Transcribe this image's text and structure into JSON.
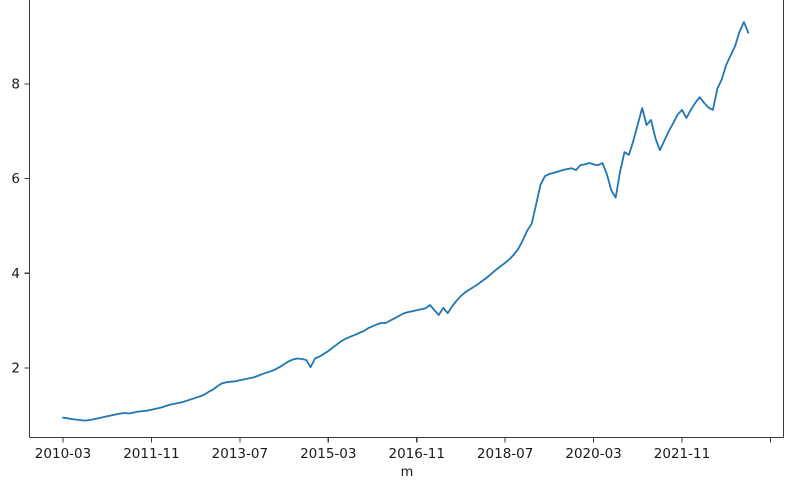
{
  "figure": {
    "background": "#ffffff",
    "note": "matplotlib-style line figure, top spine cropped out of view"
  },
  "chart_data": {
    "type": "line",
    "title": "",
    "xlabel": "m",
    "ylabel": "",
    "legend": "none",
    "grid": false,
    "line_color": "#1f77b4",
    "axis_color": "#3c3c3c",
    "x_tick_labels": [
      "2010-03",
      "2011-11",
      "2013-07",
      "2015-03",
      "2016-11",
      "2018-07",
      "2020-03",
      "2021-11",
      ""
    ],
    "x_tick_month_indices": [
      0,
      20,
      40,
      60,
      80,
      100,
      120,
      140,
      160
    ],
    "y_ticks": [
      2,
      4,
      6,
      8
    ],
    "y_tick_labels": [
      "2",
      "4",
      "6",
      "8"
    ],
    "ylim_visible": [
      0.54,
      9.77
    ],
    "x_start": "2010-03",
    "x_frequency": "monthly",
    "series": [
      {
        "name": "line",
        "color": "#1f77b4",
        "values": [
          0.95,
          0.94,
          0.92,
          0.91,
          0.9,
          0.89,
          0.9,
          0.92,
          0.94,
          0.96,
          0.98,
          1.0,
          1.02,
          1.04,
          1.05,
          1.04,
          1.06,
          1.08,
          1.09,
          1.1,
          1.12,
          1.14,
          1.16,
          1.19,
          1.22,
          1.24,
          1.26,
          1.28,
          1.31,
          1.34,
          1.37,
          1.4,
          1.44,
          1.5,
          1.55,
          1.62,
          1.68,
          1.7,
          1.71,
          1.72,
          1.74,
          1.76,
          1.78,
          1.8,
          1.83,
          1.87,
          1.9,
          1.93,
          1.97,
          2.02,
          2.08,
          2.14,
          2.18,
          2.2,
          2.19,
          2.17,
          2.02,
          2.2,
          2.24,
          2.3,
          2.36,
          2.43,
          2.5,
          2.57,
          2.62,
          2.66,
          2.7,
          2.74,
          2.78,
          2.84,
          2.88,
          2.92,
          2.95,
          2.95,
          3.0,
          3.05,
          3.1,
          3.15,
          3.18,
          3.2,
          3.22,
          3.24,
          3.26,
          3.33,
          3.22,
          3.12,
          3.27,
          3.16,
          3.3,
          3.42,
          3.52,
          3.6,
          3.66,
          3.72,
          3.78,
          3.85,
          3.92,
          4.0,
          4.08,
          4.15,
          4.22,
          4.3,
          4.4,
          4.52,
          4.7,
          4.9,
          5.05,
          5.45,
          5.87,
          6.05,
          6.1,
          6.12,
          6.15,
          6.18,
          6.2,
          6.22,
          6.18,
          6.28,
          6.3,
          6.33,
          6.3,
          6.28,
          6.33,
          6.1,
          5.75,
          5.6,
          6.15,
          6.56,
          6.5,
          6.8,
          7.15,
          7.49,
          7.13,
          7.24,
          6.85,
          6.6,
          6.8,
          7.0,
          7.17,
          7.35,
          7.45,
          7.28,
          7.45,
          7.6,
          7.72,
          7.6,
          7.5,
          7.45,
          7.9,
          8.1,
          8.4,
          8.6,
          8.8,
          9.1,
          9.31,
          9.08
        ]
      }
    ]
  }
}
